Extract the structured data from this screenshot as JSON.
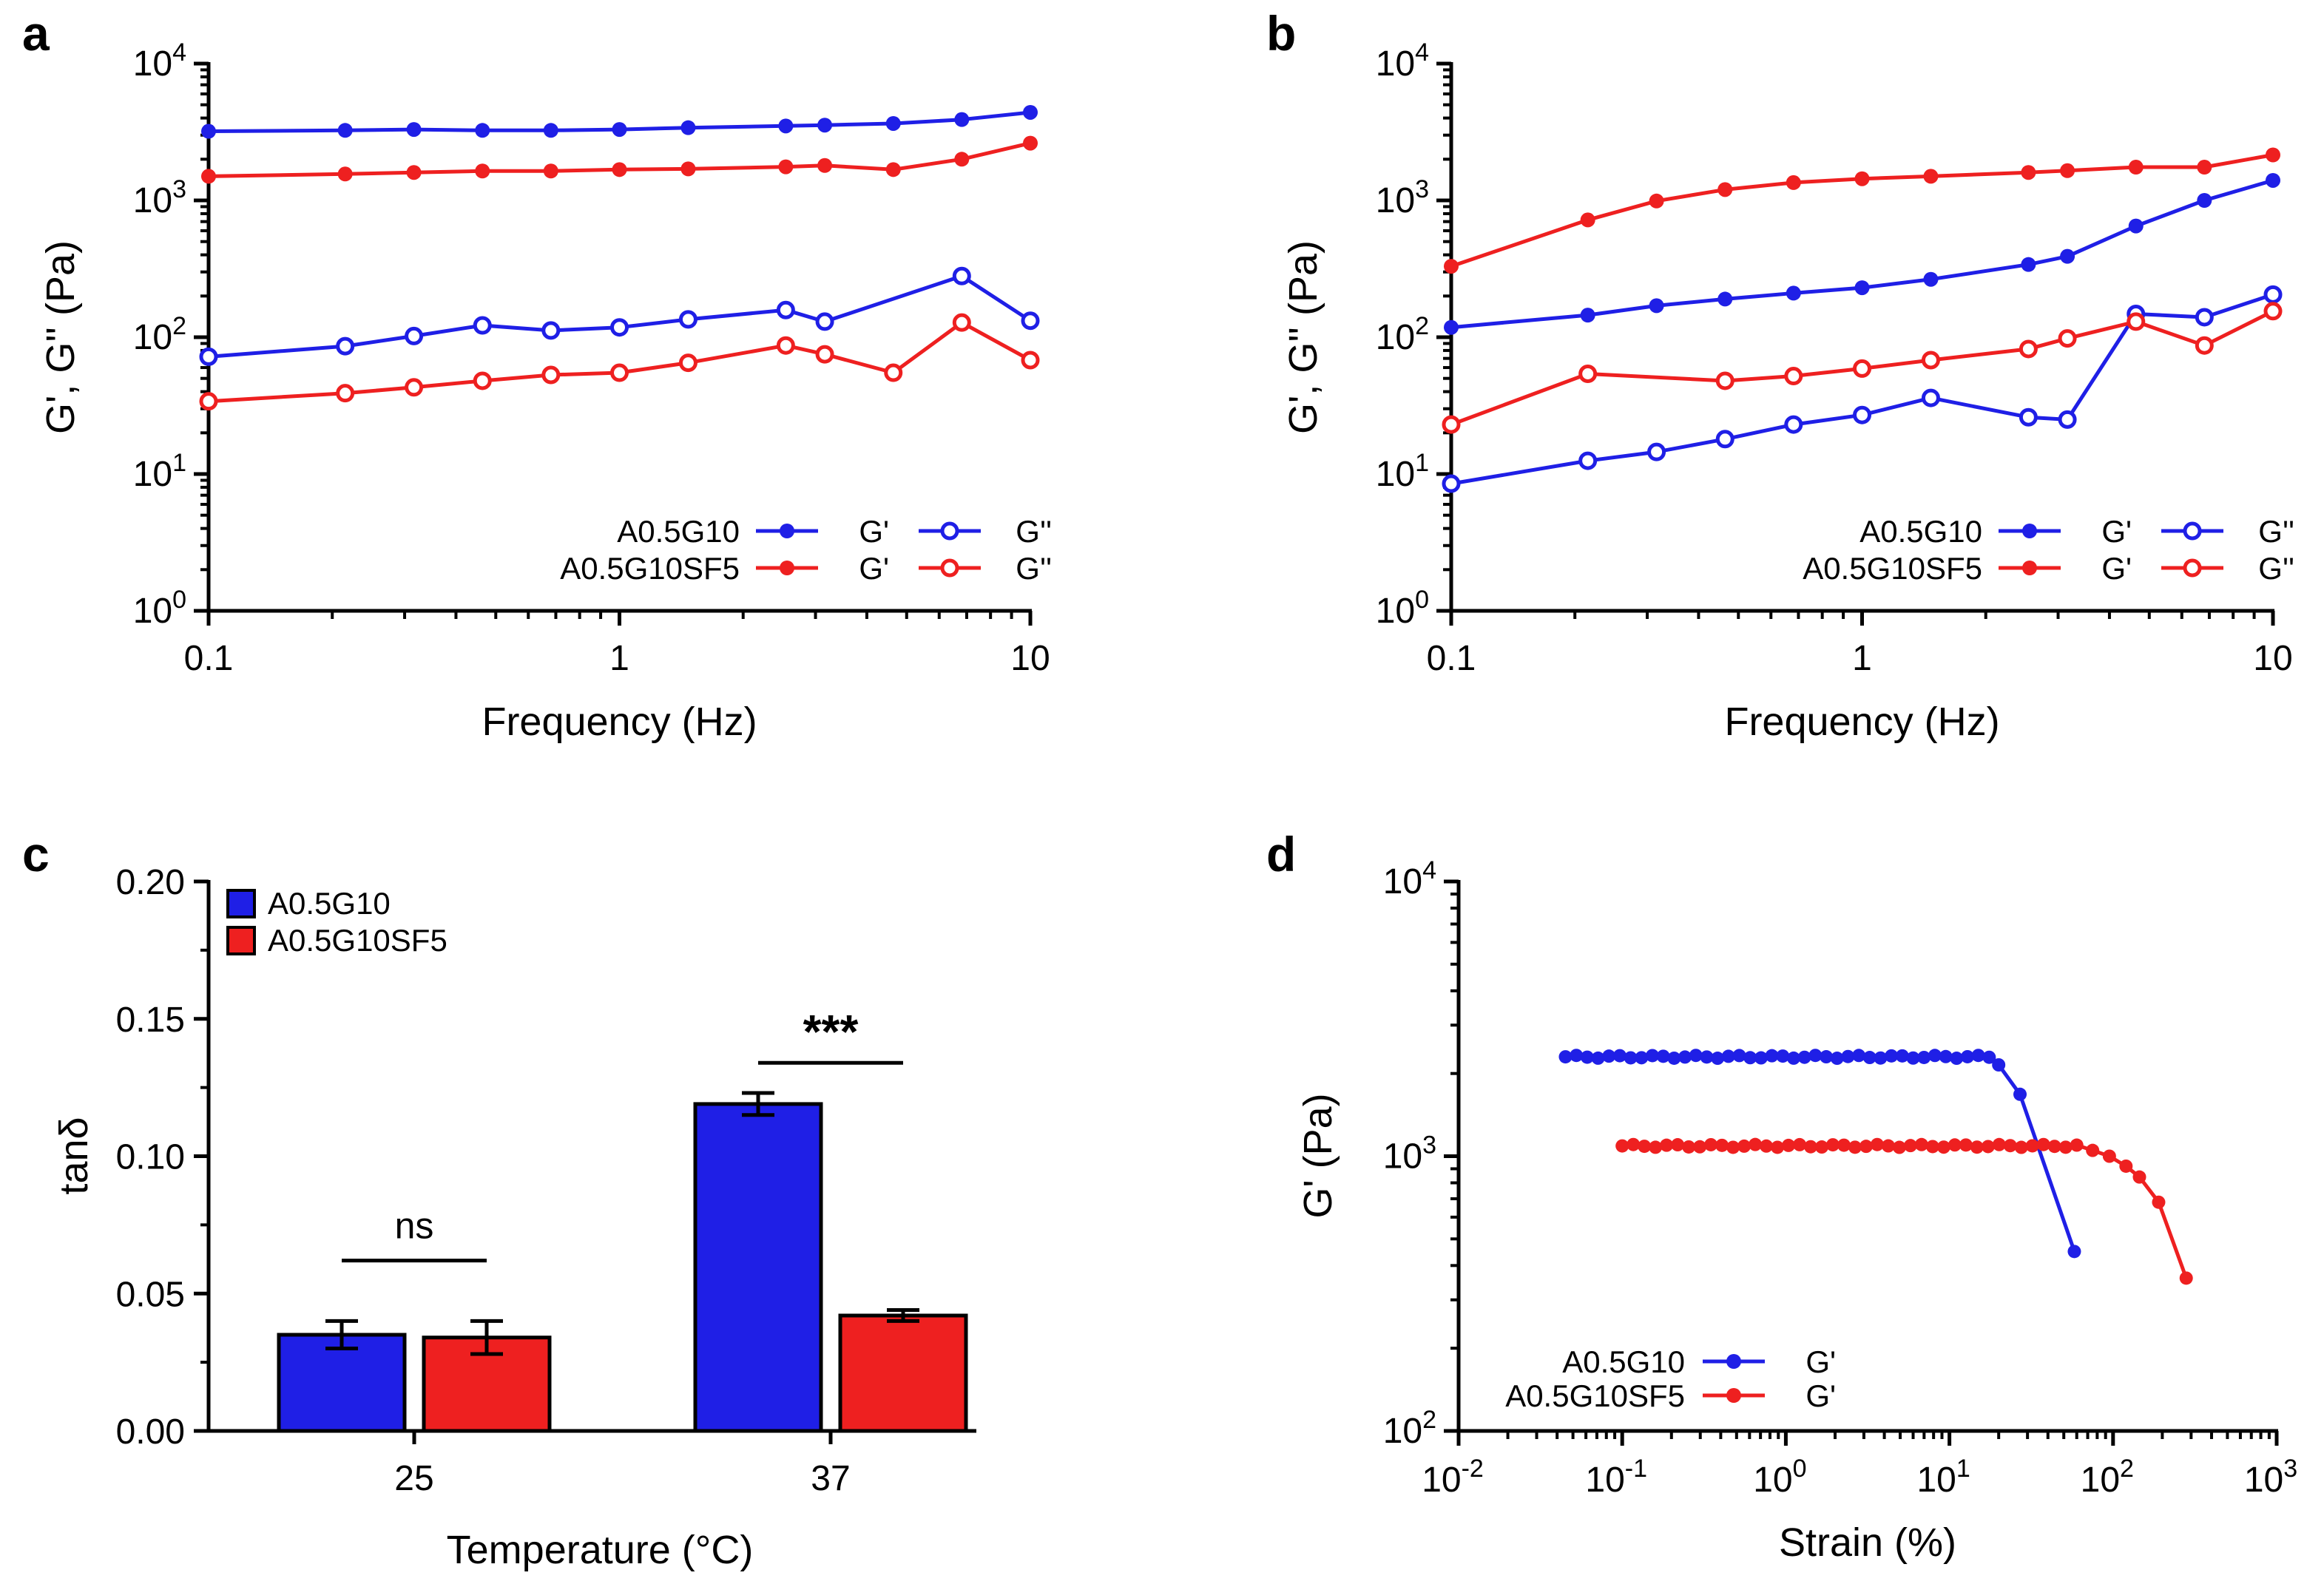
{
  "figure": {
    "background": "#ffffff",
    "colors": {
      "blue": "#1f1fe6",
      "red": "#ee2020",
      "black": "#000000"
    }
  },
  "chart_data": [
    {
      "panel": "a",
      "type": "line",
      "xscale": "log",
      "yscale": "log",
      "xlim": [
        0.1,
        10
      ],
      "ylim": [
        1,
        10000
      ],
      "xlabel": "Frequency (Hz)",
      "ylabel": "G', G'' (Pa)",
      "xticks": [
        {
          "v": 0.1,
          "label": "0.1"
        },
        {
          "v": 1,
          "label": "1"
        },
        {
          "v": 10,
          "label": "10"
        }
      ],
      "yticks": [
        {
          "v": 1,
          "b": "10",
          "e": "0"
        },
        {
          "v": 10,
          "b": "10",
          "e": "1"
        },
        {
          "v": 100,
          "b": "10",
          "e": "2"
        },
        {
          "v": 1000,
          "b": "10",
          "e": "3"
        },
        {
          "v": 10000,
          "b": "10",
          "e": "4"
        }
      ],
      "legend": {
        "position": "bottom-right",
        "sample_labels": [
          "A0.5G10",
          "A0.5G10SF5"
        ],
        "mod_labels": [
          "G'",
          "G''"
        ]
      },
      "series": [
        {
          "name": "A0.5G10 G'",
          "color": "blue",
          "filled": true,
          "row": 0,
          "col": 0,
          "x": [
            0.1,
            0.215,
            0.316,
            0.464,
            0.681,
            1.0,
            1.47,
            2.54,
            3.16,
            4.64,
            6.81,
            10.0
          ],
          "y": [
            3200,
            3250,
            3300,
            3250,
            3250,
            3300,
            3400,
            3500,
            3550,
            3650,
            3900,
            4400
          ]
        },
        {
          "name": "A0.5G10 G''",
          "color": "blue",
          "filled": false,
          "row": 0,
          "col": 1,
          "x": [
            0.1,
            0.215,
            0.316,
            0.464,
            0.681,
            1.0,
            1.47,
            2.54,
            3.16,
            6.81,
            10.0
          ],
          "y": [
            72,
            86,
            102,
            122,
            112,
            118,
            135,
            158,
            130,
            280,
            132
          ]
        },
        {
          "name": "A0.5G10SF5 G'",
          "color": "red",
          "filled": true,
          "row": 1,
          "col": 0,
          "x": [
            0.1,
            0.215,
            0.316,
            0.464,
            0.681,
            1.0,
            1.47,
            2.54,
            3.16,
            4.64,
            6.81,
            10.0
          ],
          "y": [
            1500,
            1560,
            1600,
            1640,
            1640,
            1680,
            1700,
            1760,
            1800,
            1680,
            2000,
            2620
          ]
        },
        {
          "name": "A0.5G10SF5 G''",
          "color": "red",
          "filled": false,
          "row": 1,
          "col": 1,
          "x": [
            0.1,
            0.215,
            0.316,
            0.464,
            0.681,
            1.0,
            1.47,
            2.54,
            3.16,
            4.64,
            6.81,
            10.0
          ],
          "y": [
            34,
            39,
            43,
            48,
            53,
            55,
            65,
            87,
            75,
            55,
            128,
            68
          ]
        }
      ]
    },
    {
      "panel": "b",
      "type": "line",
      "xscale": "log",
      "yscale": "log",
      "xlim": [
        0.1,
        10
      ],
      "ylim": [
        1,
        10000
      ],
      "xlabel": "Frequency (Hz)",
      "ylabel": "G', G'' (Pa)",
      "xticks": [
        {
          "v": 0.1,
          "label": "0.1"
        },
        {
          "v": 1,
          "label": "1"
        },
        {
          "v": 10,
          "label": "10"
        }
      ],
      "yticks": [
        {
          "v": 1,
          "b": "10",
          "e": "0"
        },
        {
          "v": 10,
          "b": "10",
          "e": "1"
        },
        {
          "v": 100,
          "b": "10",
          "e": "2"
        },
        {
          "v": 1000,
          "b": "10",
          "e": "3"
        },
        {
          "v": 10000,
          "b": "10",
          "e": "4"
        }
      ],
      "legend": {
        "position": "bottom-right",
        "sample_labels": [
          "A0.5G10",
          "A0.5G10SF5"
        ],
        "mod_labels": [
          "G'",
          "G''"
        ]
      },
      "series": [
        {
          "name": "A0.5G10 G'",
          "color": "blue",
          "filled": true,
          "row": 0,
          "col": 0,
          "x": [
            0.1,
            0.215,
            0.316,
            0.464,
            0.681,
            1.0,
            1.47,
            2.54,
            3.16,
            4.64,
            6.81,
            10.0
          ],
          "y": [
            118,
            145,
            170,
            190,
            210,
            230,
            265,
            340,
            390,
            650,
            1000,
            1400
          ]
        },
        {
          "name": "A0.5G10 G''",
          "color": "blue",
          "filled": false,
          "row": 0,
          "col": 1,
          "x": [
            0.1,
            0.215,
            0.316,
            0.464,
            0.681,
            1.0,
            1.47,
            2.54,
            3.16,
            4.64,
            6.81,
            10.0
          ],
          "y": [
            8.5,
            12.5,
            14.5,
            18,
            23,
            27,
            36,
            26,
            25,
            148,
            140,
            205
          ]
        },
        {
          "name": "A0.5G10SF5 G'",
          "color": "red",
          "filled": true,
          "row": 1,
          "col": 0,
          "x": [
            0.1,
            0.215,
            0.316,
            0.464,
            0.681,
            1.0,
            1.47,
            2.54,
            3.16,
            4.64,
            6.81,
            10.0
          ],
          "y": [
            330,
            720,
            990,
            1200,
            1350,
            1440,
            1500,
            1600,
            1650,
            1750,
            1750,
            2150
          ]
        },
        {
          "name": "A0.5G10SF5 G''",
          "color": "red",
          "filled": false,
          "row": 1,
          "col": 1,
          "x": [
            0.1,
            0.215,
            0.464,
            0.681,
            1.0,
            1.47,
            2.54,
            3.16,
            4.64,
            6.81,
            10.0
          ],
          "y": [
            23,
            54,
            48,
            52,
            59,
            68,
            82,
            98,
            130,
            87,
            155
          ]
        }
      ]
    },
    {
      "panel": "c",
      "type": "bar",
      "categories": [
        "25",
        "37"
      ],
      "xlabel": "Temperature (°C)",
      "ylabel": "tanδ",
      "ylim": [
        0,
        0.2
      ],
      "yticks": [
        {
          "v": 0,
          "label": "0.00"
        },
        {
          "v": 0.05,
          "label": "0.05"
        },
        {
          "v": 0.1,
          "label": "0.10"
        },
        {
          "v": 0.15,
          "label": "0.15"
        },
        {
          "v": 0.2,
          "label": "0.20"
        }
      ],
      "legend": {
        "position": "top-left"
      },
      "series": [
        {
          "name": "A0.5G10",
          "color": "blue",
          "values": [
            0.035,
            0.119
          ],
          "errors": [
            0.005,
            0.004
          ]
        },
        {
          "name": "A0.5G10SF5",
          "color": "red",
          "values": [
            0.034,
            0.042
          ],
          "errors": [
            0.006,
            0.002
          ]
        }
      ],
      "annotations": [
        {
          "category": 0,
          "text": "ns",
          "level": 0.062,
          "bold": false
        },
        {
          "category": 1,
          "text": "***",
          "level": 0.134,
          "bold": true
        }
      ]
    },
    {
      "panel": "d",
      "type": "line",
      "xscale": "log",
      "yscale": "log",
      "xlim": [
        0.01,
        1000
      ],
      "ylim": [
        100,
        10000
      ],
      "xlabel": "Strain (%)",
      "ylabel": "G' (Pa)",
      "xticks": [
        {
          "v": 0.01,
          "b": "10",
          "e": "-2"
        },
        {
          "v": 0.1,
          "b": "10",
          "e": "-1"
        },
        {
          "v": 1,
          "b": "10",
          "e": "0"
        },
        {
          "v": 10,
          "b": "10",
          "e": "1"
        },
        {
          "v": 100,
          "b": "10",
          "e": "2"
        },
        {
          "v": 1000,
          "b": "10",
          "e": "3"
        }
      ],
      "yticks": [
        {
          "v": 100,
          "b": "10",
          "e": "2"
        },
        {
          "v": 1000,
          "b": "10",
          "e": "3"
        },
        {
          "v": 10000,
          "b": "10",
          "e": "4"
        }
      ],
      "legend": {
        "position": "bottom-left",
        "sample_labels": [
          "A0.5G10",
          "A0.5G10SF5"
        ],
        "mod_labels": [
          "G'"
        ]
      },
      "series": [
        {
          "name": "A0.5G10 G'",
          "color": "blue",
          "filled": true,
          "row": 0,
          "col": 0,
          "sweep": {
            "x_start": 0.045,
            "x_end": 17.5,
            "count": 40,
            "y": 2300
          },
          "tail": {
            "x": [
              20,
              27,
              58
            ],
            "y": [
              2150,
              1680,
              450
            ]
          }
        },
        {
          "name": "A0.5G10SF5 G'",
          "color": "red",
          "filled": true,
          "row": 1,
          "col": 0,
          "sweep": {
            "x_start": 0.1,
            "x_end": 60,
            "count": 42,
            "y": 1090
          },
          "tail": {
            "x": [
              75,
              95,
              120,
              145,
              190,
              280
            ],
            "y": [
              1050,
              1000,
              920,
              840,
              680,
              360
            ]
          }
        }
      ]
    }
  ]
}
